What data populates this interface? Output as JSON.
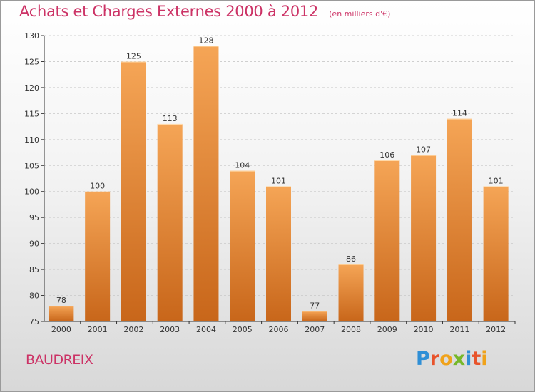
{
  "header": {
    "title": "Achats et Charges Externes 2000 à 2012",
    "subtitle": "(en milliers d'€)"
  },
  "footer": {
    "commune": "BAUDREIX",
    "brand": "Proxiti"
  },
  "colors": {
    "title": "#cc3366",
    "bar_light": "#f5a556",
    "bar_dark": "#c8661a",
    "axis": "#333333",
    "grid": "#cfcfcf",
    "brand_letters": [
      "#2f8fd6",
      "#e8532b",
      "#f0a21a",
      "#76b82a",
      "#2f8fd6",
      "#e8532b",
      "#f0a21a"
    ]
  },
  "chart_data": {
    "type": "bar",
    "title": "Achats et Charges Externes 2000 à 2012",
    "subtitle": "(en milliers d'€)",
    "categories": [
      "2000",
      "2001",
      "2002",
      "2003",
      "2004",
      "2005",
      "2006",
      "2007",
      "2008",
      "2009",
      "2010",
      "2011",
      "2012"
    ],
    "values": [
      78,
      100,
      125,
      113,
      128,
      104,
      101,
      77,
      86,
      106,
      107,
      114,
      101
    ],
    "ylim": [
      75,
      130
    ],
    "yticks": [
      75,
      80,
      85,
      90,
      95,
      100,
      105,
      110,
      115,
      120,
      125,
      130
    ],
    "grid": true,
    "legend": "none",
    "xlabel": "",
    "ylabel": ""
  }
}
